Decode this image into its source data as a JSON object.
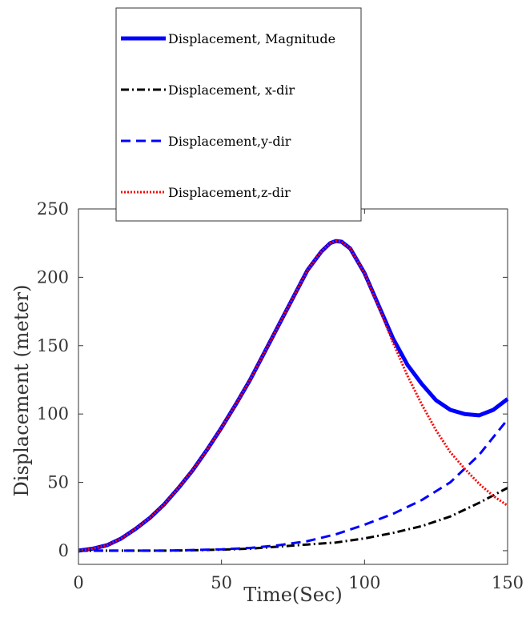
{
  "chart_data": {
    "type": "line",
    "xlabel": "Time(Sec)",
    "ylabel": "Displacement (meter)",
    "xlim": [
      0,
      150
    ],
    "ylim": [
      -10,
      250
    ],
    "xticks": [
      0,
      50,
      100,
      150
    ],
    "yticks": [
      0,
      50,
      100,
      150,
      200,
      250
    ],
    "grid": false,
    "legend_position": "top-center",
    "series": [
      {
        "name": "Displacement, Magnitude",
        "color": "#0000ff",
        "style": "solid-thick",
        "x": [
          0,
          5,
          10,
          15,
          20,
          25,
          30,
          35,
          40,
          45,
          50,
          55,
          60,
          65,
          70,
          75,
          80,
          85,
          88,
          90,
          92,
          95,
          100,
          105,
          110,
          115,
          120,
          125,
          130,
          135,
          140,
          145,
          150
        ],
        "y": [
          0,
          1.5,
          4,
          9,
          16,
          24,
          34,
          46,
          59,
          74,
          90,
          107,
          125,
          145,
          165,
          185,
          205,
          219,
          225,
          226.5,
          226,
          221,
          203,
          179,
          155,
          136,
          122,
          110,
          103,
          100,
          99,
          103,
          111
        ]
      },
      {
        "name": "Displacement, x-dir",
        "color": "#000000",
        "style": "dash-dot",
        "x": [
          0,
          10,
          20,
          30,
          40,
          50,
          60,
          70,
          80,
          90,
          100,
          110,
          120,
          130,
          140,
          150
        ],
        "y": [
          0,
          0,
          0,
          0,
          0.3,
          0.8,
          1.5,
          3,
          4.5,
          6,
          9,
          13,
          18,
          25,
          35,
          46
        ]
      },
      {
        "name": "Displacement,y-dir",
        "color": "#0000ff",
        "style": "dashed",
        "x": [
          0,
          10,
          20,
          30,
          40,
          50,
          60,
          70,
          80,
          90,
          100,
          110,
          120,
          130,
          140,
          150
        ],
        "y": [
          0,
          0,
          0,
          0,
          0.5,
          1,
          2,
          4,
          7,
          12,
          19,
          27,
          37,
          50,
          70,
          96
        ]
      },
      {
        "name": "Displacement,z-dir",
        "color": "#ff0000",
        "style": "dotted",
        "x": [
          0,
          5,
          10,
          15,
          20,
          25,
          30,
          35,
          40,
          45,
          50,
          55,
          60,
          65,
          70,
          75,
          80,
          85,
          88,
          90,
          92,
          95,
          100,
          105,
          110,
          115,
          120,
          125,
          130,
          135,
          140,
          145,
          150
        ],
        "y": [
          0,
          1.5,
          4,
          9,
          16,
          24,
          34,
          46,
          59,
          74,
          90,
          107,
          125,
          145,
          165,
          185,
          205,
          219,
          225,
          226.5,
          226,
          221,
          203,
          178,
          152,
          128,
          107,
          88,
          72,
          60,
          49,
          40,
          33
        ]
      }
    ]
  }
}
